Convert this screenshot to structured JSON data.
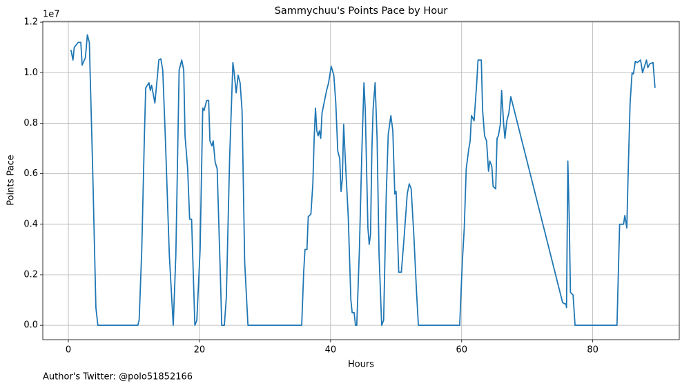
{
  "chart_data": {
    "type": "line",
    "title": "Sammychuu's Points Pace by Hour",
    "x_label": "Hours",
    "y_label": "Points Pace",
    "y_offset_label": "1e7",
    "footer": "Author's Twitter: @polo51852166",
    "color": "#1f77b4",
    "grid": true,
    "xlim": [
      -3.9,
      93.2
    ],
    "ylim": [
      -0.057,
      1.203
    ],
    "xticks": [
      0,
      20,
      40,
      60,
      80
    ],
    "yticks": [
      {
        "value": 0,
        "label": "0.0"
      },
      0.2,
      0.4,
      0.6,
      0.8,
      {
        "value": 1,
        "label": "1.0"
      },
      1.2
    ],
    "x": [
      0.4,
      0.7,
      0.9,
      1.5,
      1.9,
      2.1,
      2.6,
      2.9,
      3.2,
      3.7,
      4.2,
      4.5,
      10.6,
      10.8,
      11.2,
      11.6,
      11.8,
      12.3,
      12.5,
      12.7,
      13.2,
      13.6,
      13.8,
      14.1,
      14.4,
      14.8,
      15.4,
      16.0,
      16.4,
      16.9,
      17.3,
      17.6,
      17.8,
      18.2,
      18.5,
      18.8,
      19.3,
      19.6,
      20.1,
      20.5,
      20.7,
      21.1,
      21.4,
      21.6,
      21.9,
      22.1,
      22.4,
      22.7,
      23.2,
      23.4,
      23.8,
      24.1,
      24.6,
      25.1,
      25.3,
      25.6,
      25.9,
      26.2,
      26.5,
      26.9,
      27.4,
      35.6,
      35.9,
      36.1,
      36.4,
      36.6,
      37.0,
      37.3,
      37.5,
      37.7,
      37.9,
      38.1,
      38.3,
      38.5,
      38.7,
      39.4,
      39.7,
      40.1,
      40.5,
      40.8,
      41.1,
      41.4,
      41.6,
      41.8,
      42.0,
      42.3,
      42.7,
      43.1,
      43.3,
      43.6,
      43.8,
      44.0,
      44.4,
      44.8,
      45.1,
      45.3,
      45.7,
      45.9,
      46.1,
      46.3,
      46.5,
      46.8,
      47.1,
      47.4,
      47.8,
      48.1,
      48.5,
      48.8,
      49.2,
      49.5,
      49.8,
      50.0,
      50.4,
      50.8,
      51.2,
      51.7,
      52.0,
      52.3,
      52.7,
      53.1,
      53.4,
      59.7,
      60.1,
      60.4,
      60.7,
      61.1,
      61.3,
      61.5,
      61.9,
      62.3,
      62.5,
      63.0,
      63.2,
      63.5,
      63.8,
      64.1,
      64.3,
      64.6,
      64.8,
      65.2,
      65.4,
      65.6,
      65.9,
      66.1,
      66.4,
      66.6,
      66.9,
      67.2,
      67.5,
      75.4,
      75.7,
      75.9,
      76.0,
      76.2,
      76.4,
      76.6,
      77.0,
      77.3,
      83.7,
      84.1,
      84.7,
      84.9,
      85.2,
      85.4,
      85.7,
      86.0,
      86.2,
      86.5,
      86.8,
      87.3,
      87.6,
      87.9,
      88.2,
      88.4,
      88.7,
      89.2,
      89.5
    ],
    "values": [
      1.09,
      1.05,
      1.1,
      1.12,
      1.12,
      1.03,
      1.06,
      1.15,
      1.12,
      0.63,
      0.07,
      0.0,
      0.0,
      0.02,
      0.3,
      0.75,
      0.94,
      0.96,
      0.93,
      0.95,
      0.88,
      0.99,
      1.05,
      1.055,
      1.01,
      0.74,
      0.28,
      0.0,
      0.28,
      1.01,
      1.05,
      1.01,
      0.75,
      0.62,
      0.42,
      0.42,
      0.0,
      0.02,
      0.3,
      0.86,
      0.85,
      0.89,
      0.89,
      0.73,
      0.71,
      0.73,
      0.645,
      0.62,
      0.19,
      0.0,
      0.0,
      0.11,
      0.66,
      1.04,
      1.0,
      0.92,
      0.99,
      0.96,
      0.85,
      0.25,
      0.0,
      0.0,
      0.21,
      0.3,
      0.3,
      0.43,
      0.44,
      0.56,
      0.74,
      0.86,
      0.77,
      0.75,
      0.77,
      0.74,
      0.84,
      0.93,
      0.96,
      1.025,
      0.99,
      0.88,
      0.69,
      0.66,
      0.53,
      0.58,
      0.795,
      0.63,
      0.43,
      0.1,
      0.05,
      0.05,
      0.0,
      0.0,
      0.3,
      0.71,
      0.96,
      0.85,
      0.385,
      0.32,
      0.36,
      0.69,
      0.86,
      0.96,
      0.74,
      0.28,
      0.0,
      0.02,
      0.52,
      0.755,
      0.83,
      0.77,
      0.52,
      0.53,
      0.21,
      0.21,
      0.34,
      0.52,
      0.56,
      0.54,
      0.36,
      0.14,
      0.0,
      0.0,
      0.25,
      0.385,
      0.62,
      0.7,
      0.73,
      0.83,
      0.81,
      0.96,
      1.05,
      1.05,
      0.85,
      0.75,
      0.73,
      0.61,
      0.65,
      0.63,
      0.55,
      0.54,
      0.74,
      0.75,
      0.795,
      0.93,
      0.8,
      0.74,
      0.81,
      0.84,
      0.905,
      0.09,
      0.085,
      0.085,
      0.07,
      0.65,
      0.44,
      0.13,
      0.12,
      0.0,
      0.0,
      0.4,
      0.4,
      0.435,
      0.385,
      0.6,
      0.88,
      1.0,
      0.995,
      1.045,
      1.04,
      1.05,
      1.0,
      1.025,
      1.05,
      1.02,
      1.035,
      1.04,
      0.94
    ]
  }
}
